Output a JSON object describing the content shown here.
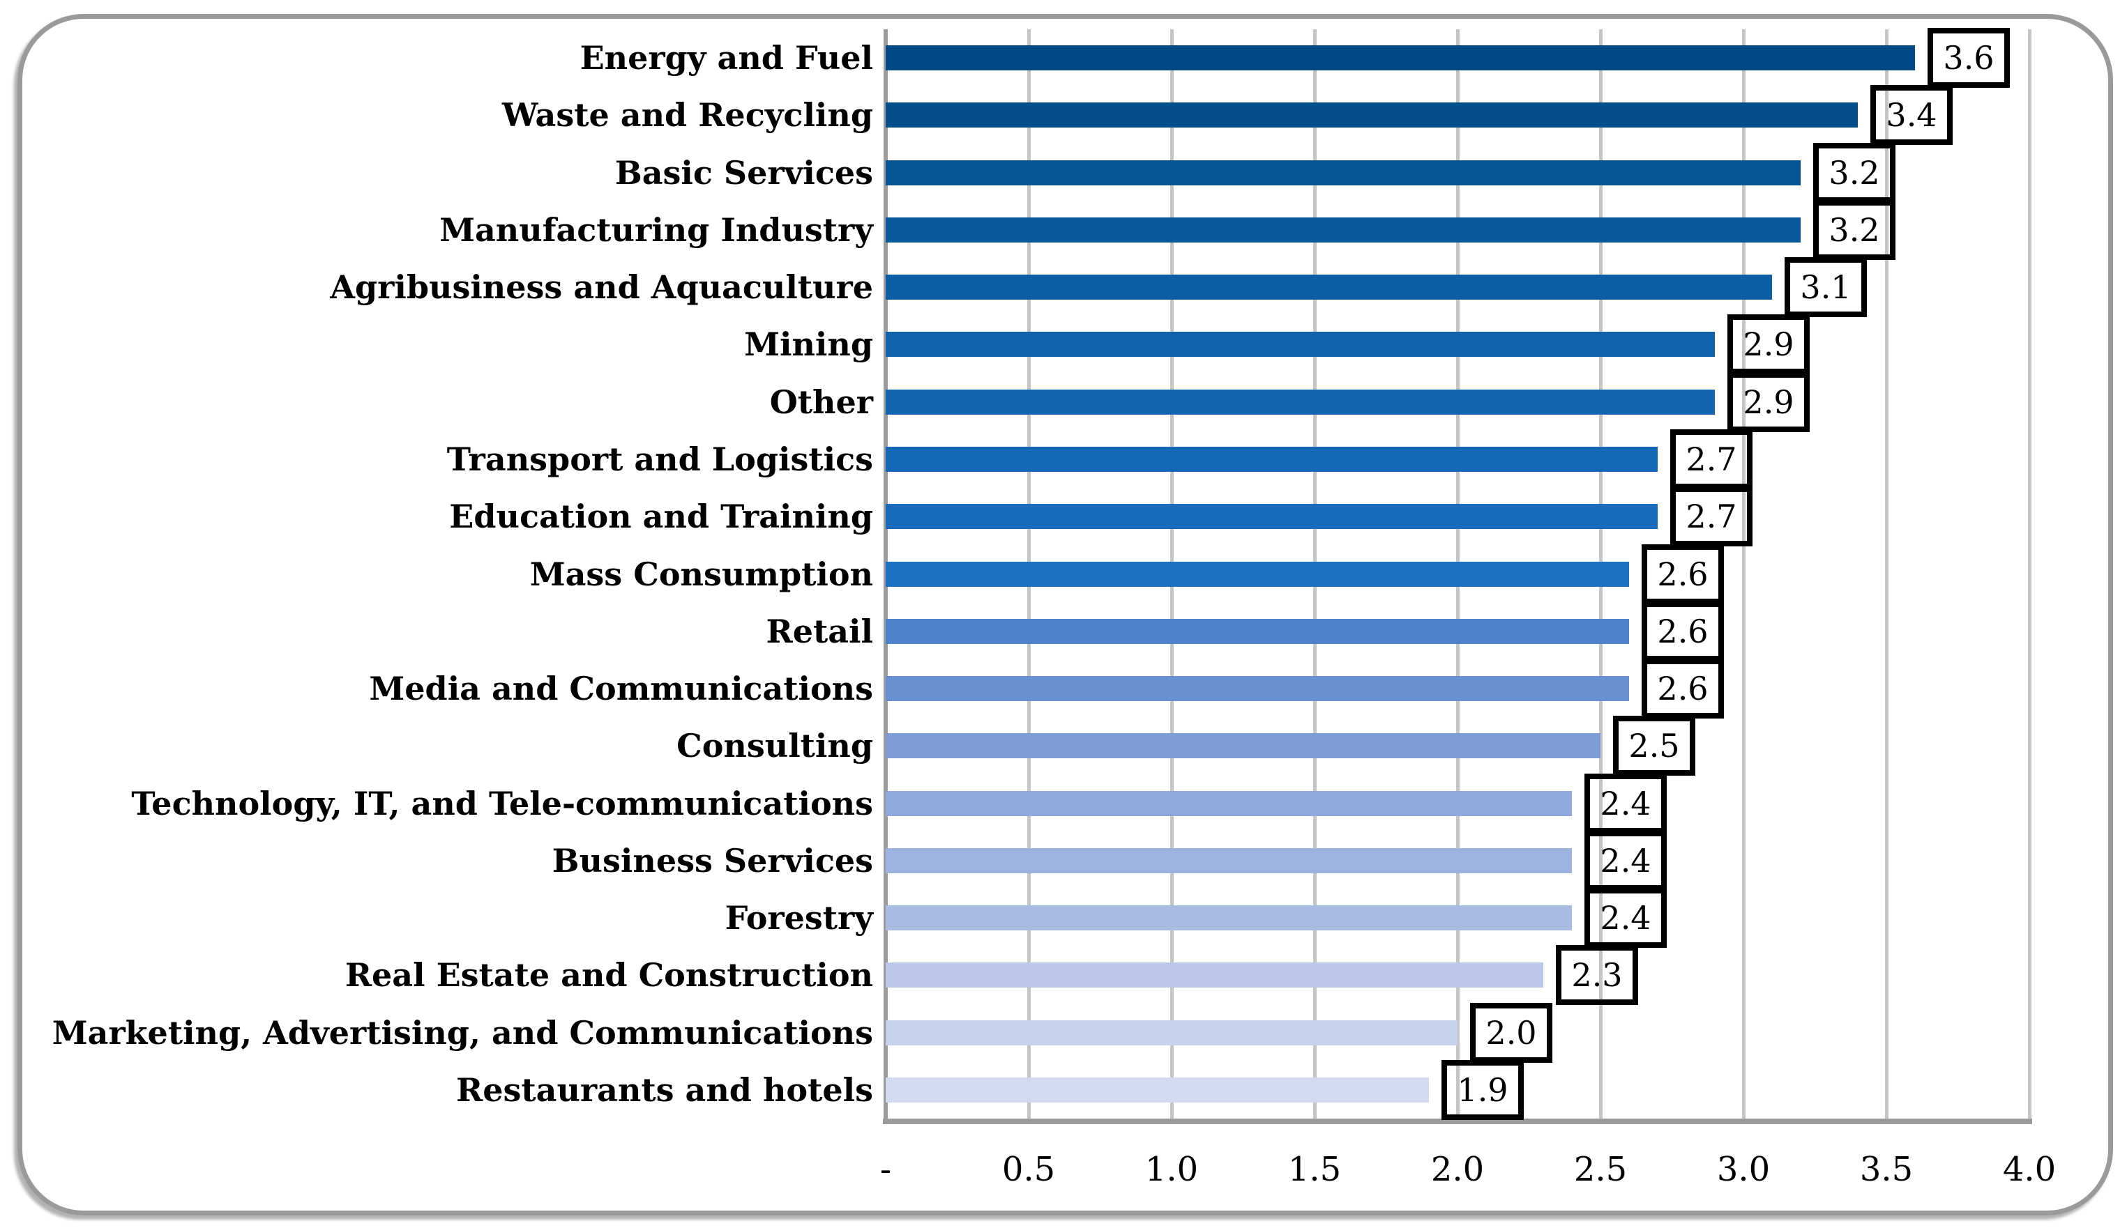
{
  "chart_data": {
    "type": "bar",
    "orientation": "horizontal",
    "title": "",
    "xlabel": "",
    "ylabel": "",
    "categories": [
      "Energy and Fuel",
      "Waste and Recycling",
      "Basic Services",
      "Manufacturing Industry",
      "Agribusiness and Aquaculture",
      "Mining",
      "Other",
      "Transport and Logistics",
      "Education and Training",
      "Mass Consumption",
      "Retail",
      "Media and Communications",
      "Consulting",
      "Technology, IT, and Tele-communications",
      "Business Services",
      "Forestry",
      "Real Estate and Construction",
      "Marketing, Advertising, and Communications",
      "Restaurants and hotels"
    ],
    "values": [
      3.6,
      3.4,
      3.2,
      3.2,
      3.1,
      2.9,
      2.9,
      2.7,
      2.7,
      2.6,
      2.6,
      2.6,
      2.5,
      2.4,
      2.4,
      2.4,
      2.3,
      2.0,
      1.9
    ],
    "value_labels": [
      "3.6",
      "3.4",
      "3.2",
      "3.2",
      "3.1",
      "2.9",
      "2.9",
      "2.7",
      "2.7",
      "2.6",
      "2.6",
      "2.6",
      "2.5",
      "2.4",
      "2.4",
      "2.4",
      "2.3",
      "2.0",
      "1.9"
    ],
    "bar_colors": [
      "#004A85",
      "#024F8C",
      "#065494",
      "#0A599C",
      "#0E5EA4",
      "#1162AB",
      "#1365B1",
      "#1568B7",
      "#186CBD",
      "#1B70C3",
      "#4E83CC",
      "#6991D2",
      "#7E9CD7",
      "#90A8DB",
      "#9DB2DF",
      "#A9BAE3",
      "#BCC8E9",
      "#C7D2EC",
      "#D2DAF0"
    ],
    "xlim": [
      0,
      4.0
    ],
    "x_ticks": [
      "-",
      "0.5",
      "1.0",
      "1.5",
      "2.0",
      "2.5",
      "3.0",
      "3.5",
      "4.0"
    ],
    "x_tick_values": [
      0,
      0.5,
      1.0,
      1.5,
      2.0,
      2.5,
      3.0,
      3.5,
      4.0
    ],
    "grid": "vertical-only",
    "legend": "none",
    "data_label_style": "boxed",
    "colors": {
      "gridline": "#C5C5C5",
      "axis_line": "#9B9B9B",
      "frame_border": "#9A9A9A",
      "label_box_border": "#000000",
      "text": "#000000"
    }
  }
}
